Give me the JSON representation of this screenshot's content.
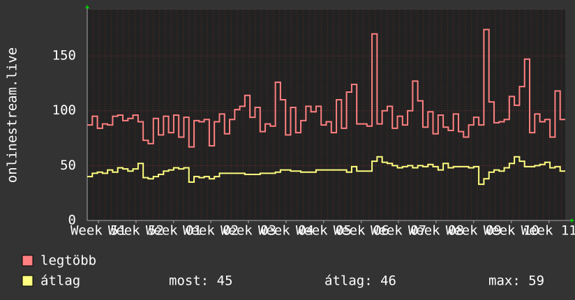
{
  "chart_data": {
    "type": "line",
    "y_label": "onlinestream.live",
    "xlim": [
      0,
      94
    ],
    "xticks": [
      {
        "value": 2.2,
        "label": "Week 51"
      },
      {
        "value": 9.6,
        "label": "Week 52"
      },
      {
        "value": 17.0,
        "label": "Week 01"
      },
      {
        "value": 24.3,
        "label": "Week 02"
      },
      {
        "value": 31.7,
        "label": "Week 03"
      },
      {
        "value": 39.1,
        "label": "Week 04"
      },
      {
        "value": 46.5,
        "label": "Week 05"
      },
      {
        "value": 53.9,
        "label": "Week 06"
      },
      {
        "value": 61.2,
        "label": "Week 07"
      },
      {
        "value": 68.6,
        "label": "Week 08"
      },
      {
        "value": 76.0,
        "label": "Week 09"
      },
      {
        "value": 83.4,
        "label": "Week 10"
      },
      {
        "value": 90.8,
        "label": "Week 11"
      }
    ],
    "ylim": [
      0,
      192
    ],
    "yticks": [
      0,
      50,
      100,
      150
    ],
    "grid": true,
    "series": [
      {
        "name": "legtöbb",
        "color": "#ff8080",
        "values": [
          87,
          95,
          84,
          88,
          87,
          95,
          96,
          91,
          93,
          96,
          90,
          73,
          70,
          93,
          78,
          95,
          80,
          96,
          76,
          94,
          67,
          91,
          90,
          92,
          68,
          90,
          97,
          79,
          92,
          101,
          104,
          114,
          94,
          103,
          81,
          88,
          86,
          126,
          110,
          78,
          103,
          80,
          91,
          104,
          99,
          104,
          87,
          90,
          80,
          110,
          84,
          117,
          124,
          88,
          88,
          86,
          170,
          88,
          100,
          104,
          84,
          95,
          87,
          100,
          127,
          109,
          85,
          99,
          79,
          96,
          85,
          82,
          97,
          81,
          76,
          87,
          94,
          87,
          174,
          108,
          89,
          90,
          92,
          113,
          105,
          122,
          147,
          80,
          97,
          90,
          92,
          76,
          118,
          92
        ]
      },
      {
        "name": "átlag",
        "color": "#ffff80",
        "values": [
          40,
          43,
          44,
          43,
          46,
          44,
          48,
          47,
          45,
          47,
          52,
          39,
          38,
          40,
          42,
          45,
          46,
          48,
          47,
          48,
          35,
          40,
          39,
          40,
          38,
          40,
          43,
          43,
          43,
          43,
          43,
          42,
          42,
          42,
          43,
          43,
          43,
          44,
          46,
          46,
          45,
          45,
          44,
          44,
          44,
          46,
          46,
          46,
          46,
          46,
          46,
          44,
          49,
          45,
          45,
          45,
          54,
          58,
          53,
          52,
          50,
          48,
          49,
          50,
          48,
          50,
          49,
          51,
          49,
          46,
          52,
          48,
          49,
          49,
          49,
          48,
          49,
          33,
          38,
          44,
          46,
          45,
          48,
          52,
          58,
          54,
          49,
          49,
          50,
          51,
          53,
          48,
          49,
          45
        ]
      }
    ],
    "stats": [
      "most: 45",
      "átlag: 46",
      "max: 59"
    ]
  }
}
